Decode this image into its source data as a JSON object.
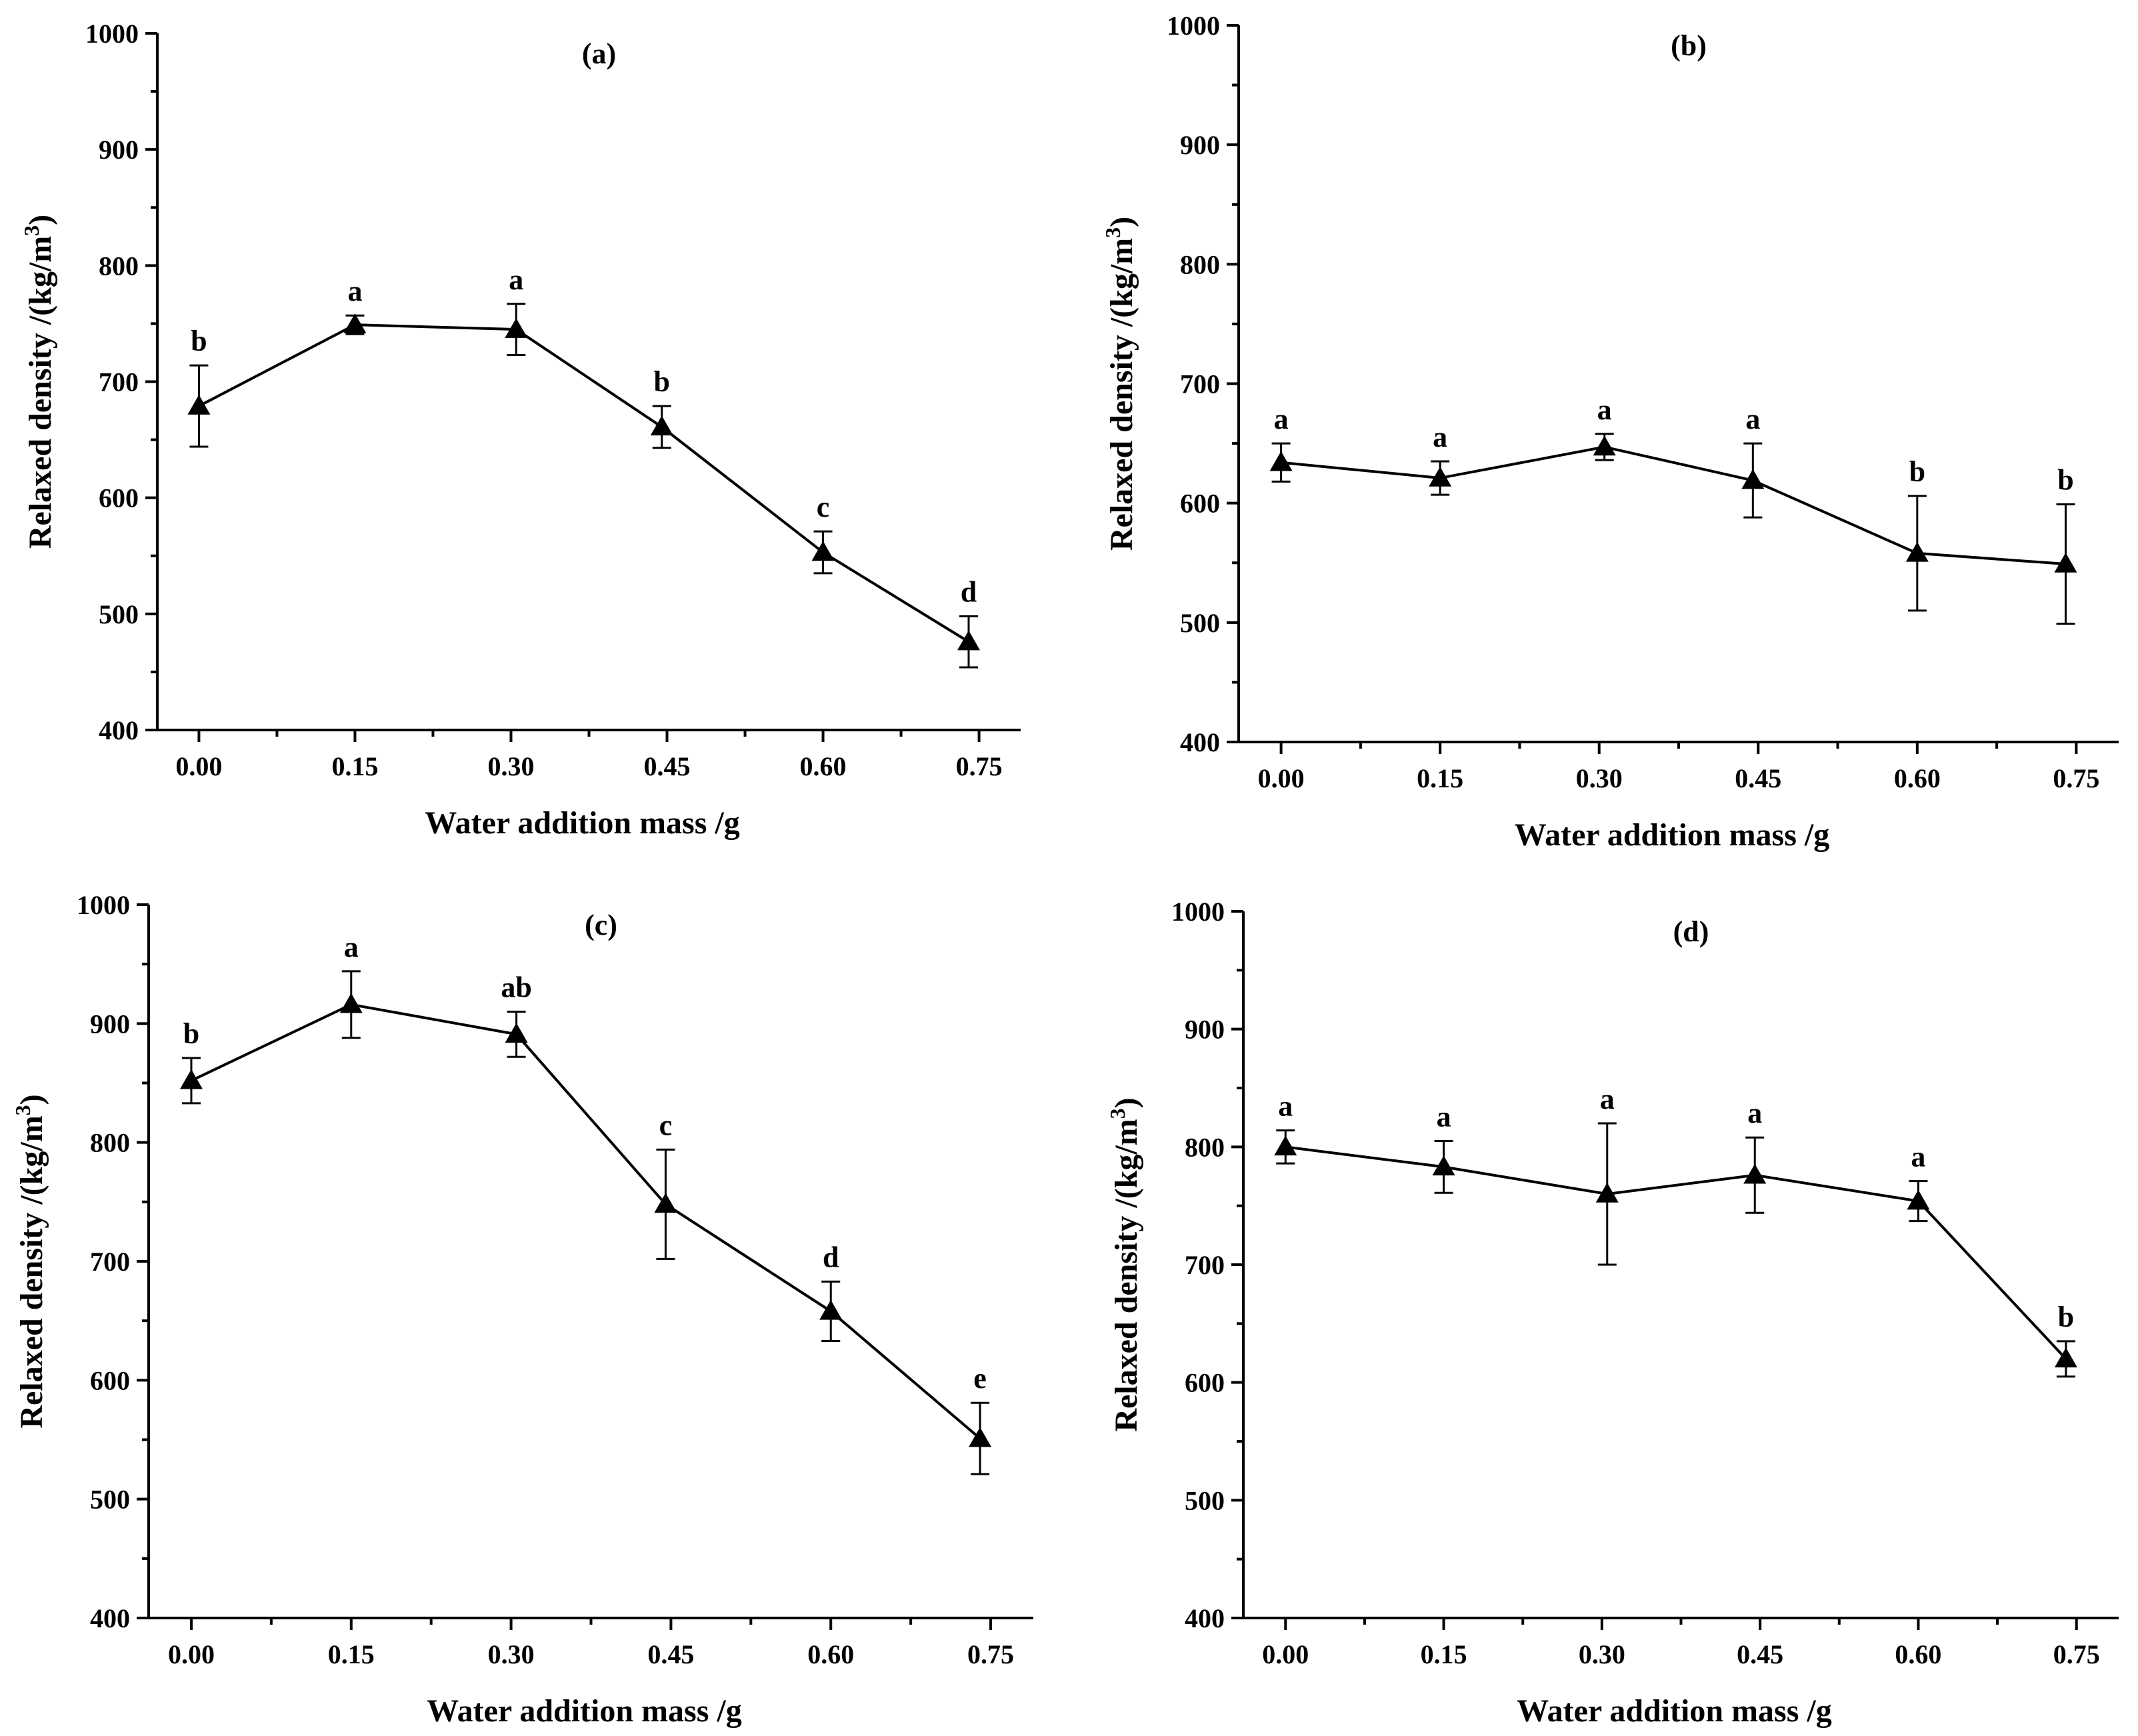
{
  "chart_data": [
    {
      "type": "line",
      "title": "(a)",
      "xlabel": "Water addition mass /g",
      "ylabel": "Relaxed density /(kg/m",
      "ylabel_sup": "3",
      "ylabel_close": ")",
      "xlim": [
        -0.04,
        0.79
      ],
      "ylim": [
        400,
        1000
      ],
      "x_ticks": [
        0.0,
        0.15,
        0.3,
        0.45,
        0.6,
        0.75
      ],
      "x_tick_labels": [
        "0.00",
        "0.15",
        "0.30",
        "0.45",
        "0.60",
        "0.75"
      ],
      "y_ticks": [
        400,
        500,
        600,
        700,
        800,
        900,
        1000
      ],
      "y_tick_labels": [
        "400",
        "500",
        "600",
        "700",
        "800",
        "900",
        "1000"
      ],
      "grid": false,
      "points": [
        {
          "x": 0.0,
          "y": 679,
          "err": 35,
          "label": "b"
        },
        {
          "x": 0.15,
          "y": 749,
          "err": 8,
          "label": "a"
        },
        {
          "x": 0.305,
          "y": 745,
          "err": 22,
          "label": "a"
        },
        {
          "x": 0.445,
          "y": 661,
          "err": 18,
          "label": "b"
        },
        {
          "x": 0.6,
          "y": 553,
          "err": 18,
          "label": "c"
        },
        {
          "x": 0.74,
          "y": 476,
          "err": 22,
          "label": "d"
        }
      ]
    },
    {
      "type": "line",
      "title": "(b)",
      "xlabel": "Water addition mass /g",
      "ylabel": "Relaxed density /(kg/m",
      "ylabel_sup": "3",
      "ylabel_close": ")",
      "xlim": [
        -0.04,
        0.79
      ],
      "ylim": [
        400,
        1000
      ],
      "x_ticks": [
        0.0,
        0.15,
        0.3,
        0.45,
        0.6,
        0.75
      ],
      "x_tick_labels": [
        "0.00",
        "0.15",
        "0.30",
        "0.45",
        "0.60",
        "0.75"
      ],
      "y_ticks": [
        400,
        500,
        600,
        700,
        800,
        900,
        1000
      ],
      "y_tick_labels": [
        "400",
        "500",
        "600",
        "700",
        "800",
        "900",
        "1000"
      ],
      "grid": false,
      "points": [
        {
          "x": 0.0,
          "y": 634,
          "err": 16,
          "label": "a"
        },
        {
          "x": 0.15,
          "y": 621,
          "err": 14,
          "label": "a"
        },
        {
          "x": 0.305,
          "y": 647,
          "err": 11,
          "label": "a"
        },
        {
          "x": 0.445,
          "y": 619,
          "err": 31,
          "label": "a"
        },
        {
          "x": 0.6,
          "y": 558,
          "err": 48,
          "label": "b"
        },
        {
          "x": 0.74,
          "y": 549,
          "err": 50,
          "label": "b"
        }
      ]
    },
    {
      "type": "line",
      "title": "(c)",
      "xlabel": "Water addition mass /g",
      "ylabel": "Relaxed density /(kg/m",
      "ylabel_sup": "3",
      "ylabel_close": ")",
      "xlim": [
        -0.04,
        0.79
      ],
      "ylim": [
        400,
        1000
      ],
      "x_ticks": [
        0.0,
        0.15,
        0.3,
        0.45,
        0.6,
        0.75
      ],
      "x_tick_labels": [
        "0.00",
        "0.15",
        "0.30",
        "0.45",
        "0.60",
        "0.75"
      ],
      "y_ticks": [
        400,
        500,
        600,
        700,
        800,
        900,
        1000
      ],
      "y_tick_labels": [
        "400",
        "500",
        "600",
        "700",
        "800",
        "900",
        "1000"
      ],
      "grid": false,
      "points": [
        {
          "x": 0.0,
          "y": 852,
          "err": 19,
          "label": "b"
        },
        {
          "x": 0.15,
          "y": 916,
          "err": 28,
          "label": "a"
        },
        {
          "x": 0.305,
          "y": 891,
          "err": 19,
          "label": "ab"
        },
        {
          "x": 0.445,
          "y": 748,
          "err": 46,
          "label": "c"
        },
        {
          "x": 0.6,
          "y": 658,
          "err": 25,
          "label": "d"
        },
        {
          "x": 0.74,
          "y": 551,
          "err": 30,
          "label": "e"
        }
      ]
    },
    {
      "type": "line",
      "title": "(d)",
      "xlabel": "Water addition mass /g",
      "ylabel": "Relaxed density /(kg/m",
      "ylabel_sup": "3",
      "ylabel_close": ")",
      "xlim": [
        -0.04,
        0.79
      ],
      "ylim": [
        400,
        1000
      ],
      "x_ticks": [
        0.0,
        0.15,
        0.3,
        0.45,
        0.6,
        0.75
      ],
      "x_tick_labels": [
        "0.00",
        "0.15",
        "0.30",
        "0.45",
        "0.60",
        "0.75"
      ],
      "y_ticks": [
        400,
        500,
        600,
        700,
        800,
        900,
        1000
      ],
      "y_tick_labels": [
        "400",
        "500",
        "600",
        "700",
        "800",
        "900",
        "1000"
      ],
      "grid": false,
      "points": [
        {
          "x": 0.0,
          "y": 800,
          "err": 14,
          "label": "a"
        },
        {
          "x": 0.15,
          "y": 783,
          "err": 22,
          "label": "a"
        },
        {
          "x": 0.305,
          "y": 760,
          "err": 60,
          "label": "a"
        },
        {
          "x": 0.445,
          "y": 776,
          "err": 32,
          "label": "a"
        },
        {
          "x": 0.6,
          "y": 754,
          "err": 17,
          "label": "a"
        },
        {
          "x": 0.74,
          "y": 620,
          "err": 15,
          "label": "b"
        }
      ]
    }
  ]
}
